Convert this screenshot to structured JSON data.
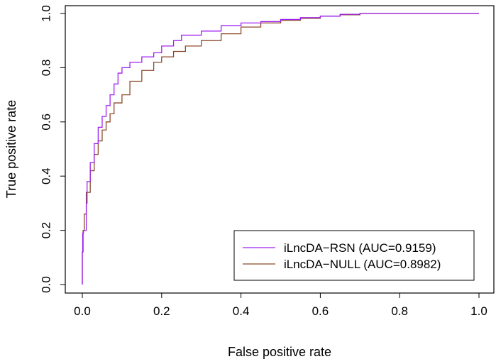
{
  "chart_data": {
    "type": "line",
    "title": "",
    "xlabel": "False positive rate",
    "ylabel": "True positive rate",
    "xlim": [
      0,
      1
    ],
    "ylim": [
      0,
      1
    ],
    "xticks": [
      "0.0",
      "0.2",
      "0.4",
      "0.6",
      "0.8",
      "1.0"
    ],
    "yticks": [
      "0.0",
      "0.2",
      "0.4",
      "0.6",
      "0.8",
      "1.0"
    ],
    "grid": false,
    "legend_position": "bottom-right",
    "series": [
      {
        "name": "iLncDA−RSN (AUC=0.9159)",
        "color": "#a020f0",
        "points": [
          [
            0,
            0
          ],
          [
            0.001,
            0.12
          ],
          [
            0.003,
            0.19
          ],
          [
            0.01,
            0.2
          ],
          [
            0.012,
            0.3
          ],
          [
            0.02,
            0.38
          ],
          [
            0.03,
            0.45
          ],
          [
            0.04,
            0.52
          ],
          [
            0.05,
            0.58
          ],
          [
            0.06,
            0.62
          ],
          [
            0.07,
            0.66
          ],
          [
            0.08,
            0.7
          ],
          [
            0.09,
            0.74
          ],
          [
            0.1,
            0.78
          ],
          [
            0.12,
            0.8
          ],
          [
            0.15,
            0.82
          ],
          [
            0.18,
            0.84
          ],
          [
            0.2,
            0.855
          ],
          [
            0.23,
            0.88
          ],
          [
            0.25,
            0.9
          ],
          [
            0.3,
            0.92
          ],
          [
            0.35,
            0.935
          ],
          [
            0.4,
            0.955
          ],
          [
            0.45,
            0.965
          ],
          [
            0.5,
            0.97
          ],
          [
            0.55,
            0.978
          ],
          [
            0.6,
            0.985
          ],
          [
            0.65,
            0.99
          ],
          [
            0.7,
            0.997
          ],
          [
            0.75,
            1.0
          ],
          [
            1.0,
            1.0
          ]
        ]
      },
      {
        "name": "iLncDA−NULL (AUC=0.8982)",
        "color": "#8b4a2b",
        "points": [
          [
            0,
            0
          ],
          [
            0.002,
            0.12
          ],
          [
            0.005,
            0.2
          ],
          [
            0.01,
            0.26
          ],
          [
            0.02,
            0.34
          ],
          [
            0.03,
            0.42
          ],
          [
            0.04,
            0.48
          ],
          [
            0.05,
            0.53
          ],
          [
            0.06,
            0.57
          ],
          [
            0.07,
            0.6
          ],
          [
            0.08,
            0.63
          ],
          [
            0.1,
            0.67
          ],
          [
            0.12,
            0.7
          ],
          [
            0.15,
            0.75
          ],
          [
            0.18,
            0.79
          ],
          [
            0.2,
            0.82
          ],
          [
            0.23,
            0.84
          ],
          [
            0.26,
            0.86
          ],
          [
            0.3,
            0.88
          ],
          [
            0.35,
            0.9
          ],
          [
            0.4,
            0.925
          ],
          [
            0.45,
            0.95
          ],
          [
            0.5,
            0.965
          ],
          [
            0.55,
            0.975
          ],
          [
            0.6,
            0.982
          ],
          [
            0.65,
            0.99
          ],
          [
            0.7,
            0.995
          ],
          [
            0.75,
            1.0
          ],
          [
            1.0,
            1.0
          ]
        ]
      }
    ]
  }
}
